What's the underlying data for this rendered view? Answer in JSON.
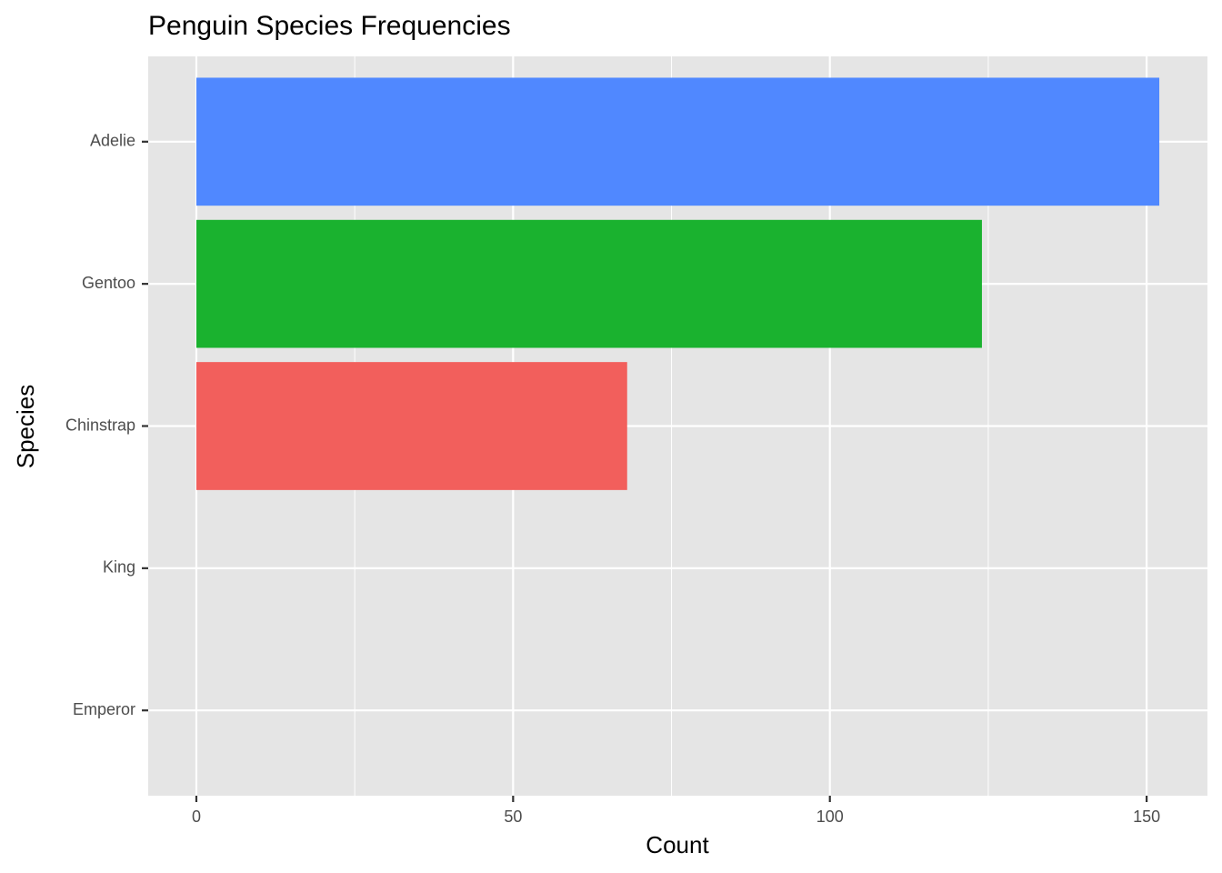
{
  "chart_data": {
    "type": "bar",
    "orientation": "horizontal",
    "title": "Penguin Species Frequencies",
    "x_label": "Count",
    "y_label": "Species",
    "categories": [
      "Adelie",
      "Gentoo",
      "Chinstrap",
      "King",
      "Emperor"
    ],
    "values": [
      152,
      124,
      68,
      0,
      0
    ],
    "colors": [
      "#5088FF",
      "#1AB22F",
      "#F25F5C",
      "#F25F5C",
      "#F25F5C"
    ],
    "xlim": [
      -7.6,
      159.6
    ],
    "xticks": [
      0,
      50,
      100,
      150
    ],
    "xminor": [
      25,
      75,
      125
    ],
    "grid": true
  }
}
